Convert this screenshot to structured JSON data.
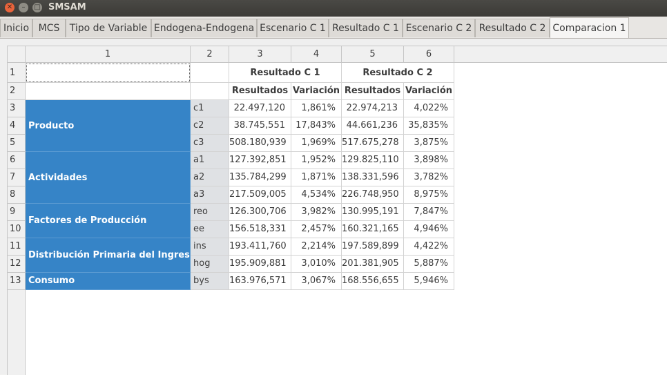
{
  "window": {
    "title": "SMSAM"
  },
  "tabs": [
    "Inicio",
    "MCS",
    "Tipo de Variable",
    "Endogena-Endogena",
    "Escenario C 1",
    "Resultado C 1",
    "Escenario C 2",
    "Resultado C 2",
    "Comparacion 1"
  ],
  "active_tab": "Comparacion 1",
  "table": {
    "column_headers": [
      "1",
      "2",
      "3",
      "4",
      "5",
      "6"
    ],
    "row_headers": [
      "1",
      "2",
      "3",
      "4",
      "5",
      "6",
      "7",
      "8",
      "9",
      "10",
      "11",
      "12",
      "13"
    ],
    "group_headers": [
      "Resultado C 1",
      "Resultado C 2"
    ],
    "sub_headers": [
      "Resultados",
      "Variación",
      "Resultados",
      "Variación"
    ],
    "groups": [
      "Producto",
      "Actividades",
      "Factores de Producción",
      "Distribución Primaria del Ingreso",
      "Consumo"
    ],
    "rows": [
      {
        "code": "c1",
        "r1": "22.497,120",
        "v1": "1,861%",
        "r2": "22.974,213",
        "v2": "4,022%"
      },
      {
        "code": "c2",
        "r1": "38.745,551",
        "v1": "17,843%",
        "r2": "44.661,236",
        "v2": "35,835%"
      },
      {
        "code": "c3",
        "r1": "508.180,939",
        "v1": "1,969%",
        "r2": "517.675,278",
        "v2": "3,875%"
      },
      {
        "code": "a1",
        "r1": "127.392,851",
        "v1": "1,952%",
        "r2": "129.825,110",
        "v2": "3,898%"
      },
      {
        "code": "a2",
        "r1": "135.784,299",
        "v1": "1,871%",
        "r2": "138.331,596",
        "v2": "3,782%"
      },
      {
        "code": "a3",
        "r1": "217.509,005",
        "v1": "4,534%",
        "r2": "226.748,950",
        "v2": "8,975%"
      },
      {
        "code": "reo",
        "r1": "126.300,706",
        "v1": "3,982%",
        "r2": "130.995,191",
        "v2": "7,847%"
      },
      {
        "code": "ee",
        "r1": "156.518,331",
        "v1": "2,457%",
        "r2": "160.321,165",
        "v2": "4,946%"
      },
      {
        "code": "ins",
        "r1": "193.411,760",
        "v1": "2,214%",
        "r2": "197.589,899",
        "v2": "4,422%"
      },
      {
        "code": "hog",
        "r1": "195.909,881",
        "v1": "3,010%",
        "r2": "201.381,905",
        "v2": "5,887%"
      },
      {
        "code": "bys",
        "r1": "163.976,571",
        "v1": "3,067%",
        "r2": "168.556,655",
        "v2": "5,946%"
      }
    ]
  },
  "colors": {
    "group_fill": "#3684c7",
    "code_fill": "#dfe1e4"
  }
}
